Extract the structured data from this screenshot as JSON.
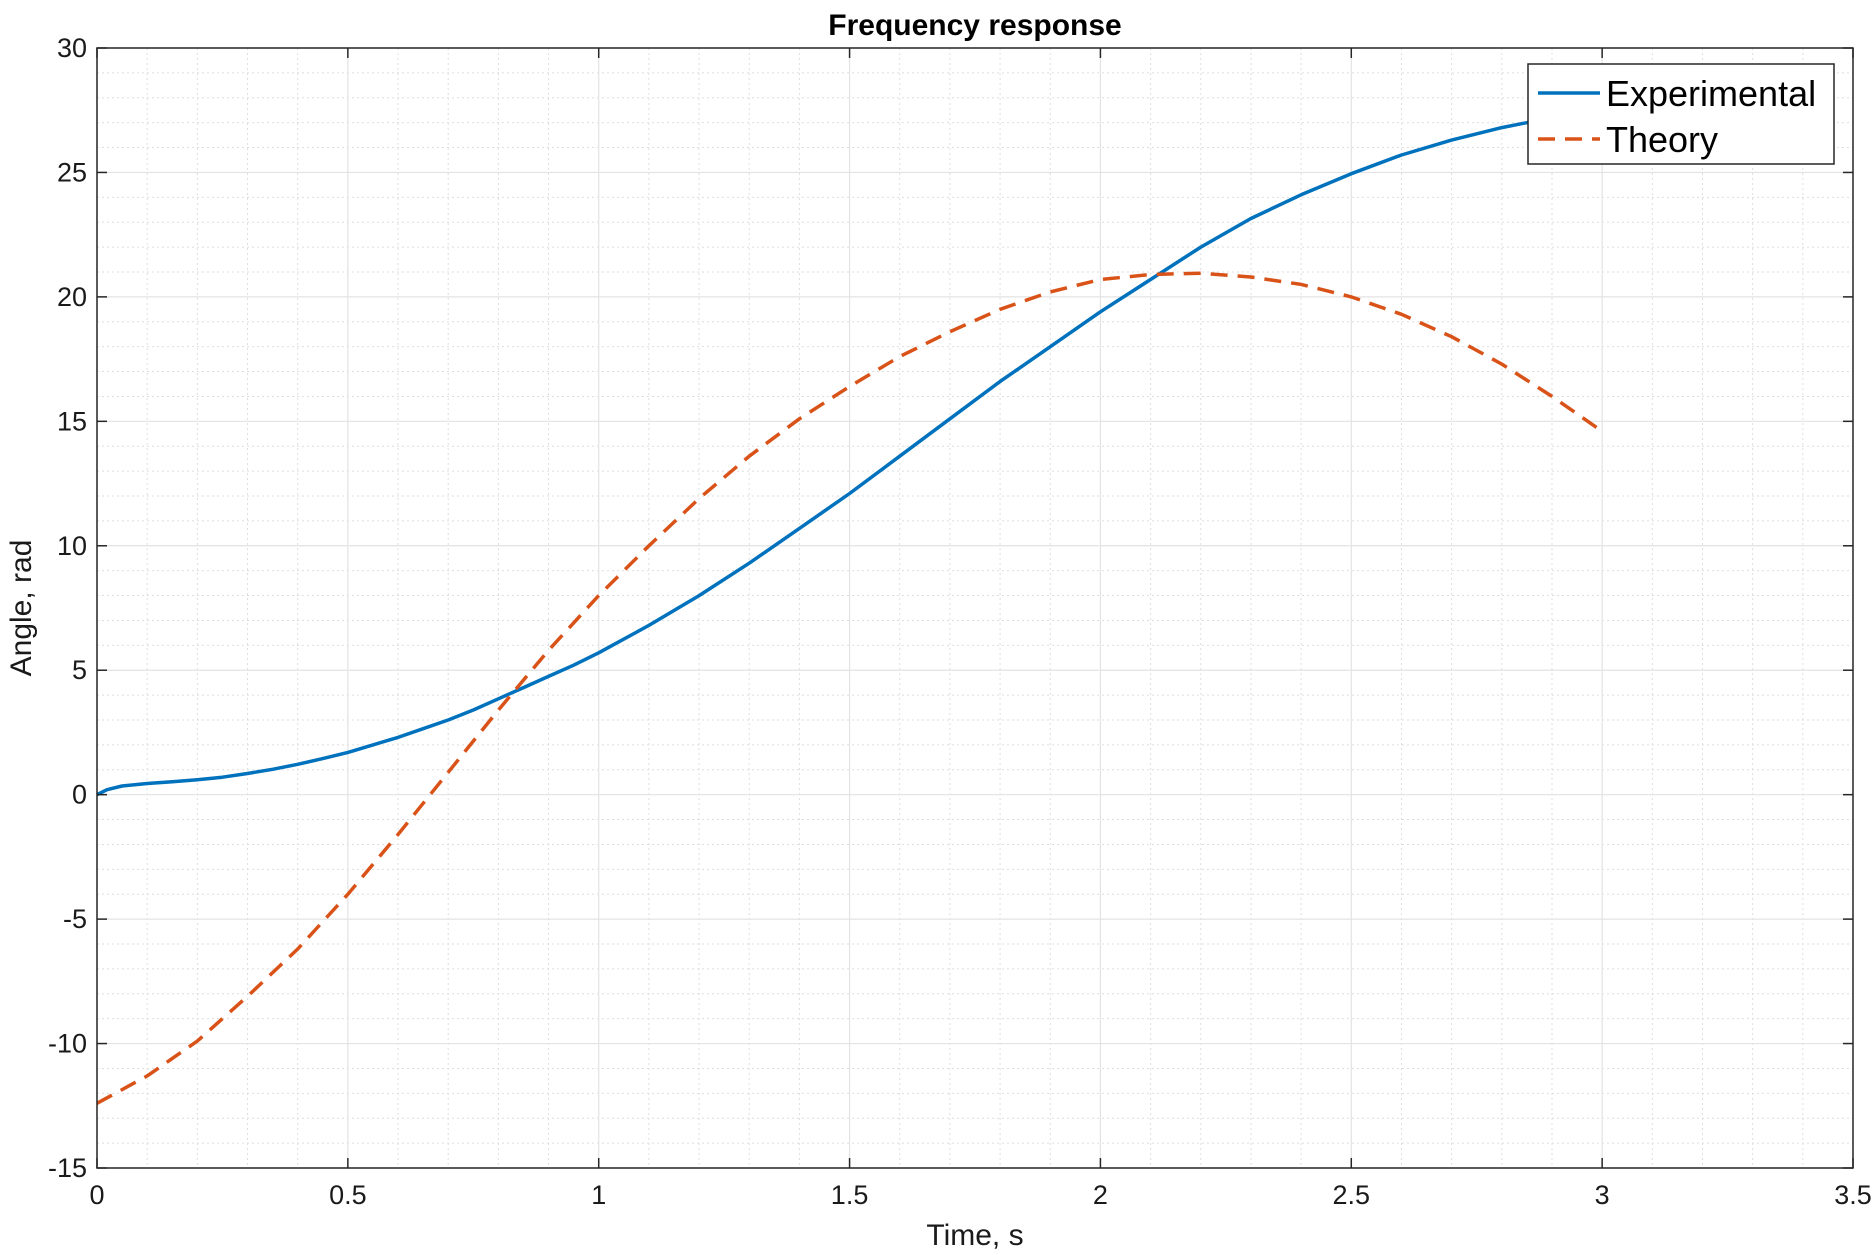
{
  "chart_data": {
    "type": "line",
    "title": "Frequency response",
    "xlabel": "Time, s",
    "ylabel": "Angle, rad",
    "xlim": [
      0,
      3.5
    ],
    "ylim": [
      -15,
      30
    ],
    "xticks": [
      0,
      0.5,
      1,
      1.5,
      2,
      2.5,
      3,
      3.5
    ],
    "xtick_labels": [
      "0",
      "0.5",
      "1",
      "1.5",
      "2",
      "2.5",
      "3",
      "3.5"
    ],
    "yticks": [
      -15,
      -10,
      -5,
      0,
      5,
      10,
      15,
      20,
      25,
      30
    ],
    "ytick_labels": [
      "-15",
      "-10",
      "-5",
      "0",
      "5",
      "10",
      "15",
      "20",
      "25",
      "30"
    ],
    "x_minor_step": 0.1,
    "y_minor_step": 1,
    "grid": true,
    "minor_grid": true,
    "legend_position": "top-right",
    "series": [
      {
        "name": "Experimental",
        "color": "#0072BD",
        "style": "solid",
        "x": [
          0,
          0.02,
          0.05,
          0.1,
          0.15,
          0.2,
          0.25,
          0.3,
          0.35,
          0.4,
          0.45,
          0.5,
          0.55,
          0.6,
          0.65,
          0.7,
          0.75,
          0.8,
          0.85,
          0.9,
          0.95,
          1.0,
          1.1,
          1.2,
          1.3,
          1.4,
          1.5,
          1.6,
          1.7,
          1.8,
          1.9,
          2.0,
          2.1,
          2.2,
          2.3,
          2.4,
          2.5,
          2.6,
          2.7,
          2.8,
          2.9,
          3.0
        ],
        "y": [
          0,
          0.2,
          0.35,
          0.45,
          0.52,
          0.6,
          0.7,
          0.85,
          1.02,
          1.22,
          1.45,
          1.7,
          2.0,
          2.3,
          2.65,
          3.0,
          3.4,
          3.85,
          4.3,
          4.75,
          5.2,
          5.7,
          6.8,
          8.0,
          9.3,
          10.7,
          12.1,
          13.6,
          15.1,
          16.6,
          18.0,
          19.4,
          20.7,
          22.0,
          23.15,
          24.1,
          24.95,
          25.7,
          26.3,
          26.8,
          27.2,
          27.45
        ]
      },
      {
        "name": "Theory",
        "color": "#D95319",
        "style": "dashed",
        "x": [
          0,
          0.1,
          0.2,
          0.3,
          0.4,
          0.5,
          0.6,
          0.7,
          0.8,
          0.9,
          1.0,
          1.1,
          1.2,
          1.3,
          1.4,
          1.5,
          1.6,
          1.7,
          1.8,
          1.9,
          2.0,
          2.1,
          2.2,
          2.3,
          2.4,
          2.5,
          2.6,
          2.7,
          2.8,
          2.9,
          3.0
        ],
        "y": [
          -12.4,
          -11.3,
          -9.9,
          -8.1,
          -6.2,
          -4.0,
          -1.6,
          0.9,
          3.4,
          5.8,
          8.0,
          10.0,
          11.9,
          13.6,
          15.1,
          16.4,
          17.6,
          18.6,
          19.5,
          20.2,
          20.7,
          20.9,
          20.95,
          20.8,
          20.5,
          20.0,
          19.3,
          18.4,
          17.3,
          16.0,
          14.6
        ]
      }
    ]
  }
}
